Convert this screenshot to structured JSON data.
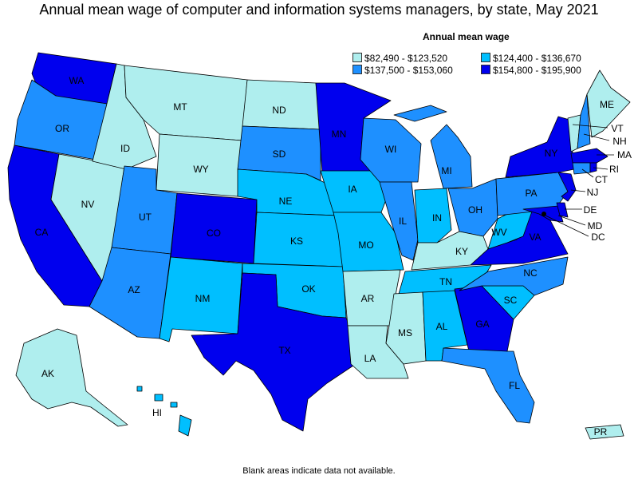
{
  "title": "Annual mean wage of computer and information systems managers, by state, May 2021",
  "legend": {
    "title": "Annual mean wage",
    "bins": [
      {
        "label": "$82,490 - $123,520",
        "color": "#afeeee"
      },
      {
        "label": "$124,400 - $136,670",
        "color": "#00bfff"
      },
      {
        "label": "$137,500 - $153,060",
        "color": "#1e90ff"
      },
      {
        "label": "$154,800 - $195,900",
        "color": "#0000ee"
      }
    ]
  },
  "footer": "Blank areas indicate data not available.",
  "states": {
    "WA": "WA",
    "OR": "OR",
    "CA": "CA",
    "NV": "NV",
    "ID": "ID",
    "MT": "MT",
    "WY": "WY",
    "UT": "UT",
    "AZ": "AZ",
    "CO": "CO",
    "NM": "NM",
    "ND": "ND",
    "SD": "SD",
    "NE": "NE",
    "KS": "KS",
    "OK": "OK",
    "TX": "TX",
    "MN": "MN",
    "IA": "IA",
    "MO": "MO",
    "AR": "AR",
    "LA": "LA",
    "WI": "WI",
    "IL": "IL",
    "MI": "MI",
    "IN": "IN",
    "OH": "OH",
    "KY": "KY",
    "TN": "TN",
    "MS": "MS",
    "AL": "AL",
    "GA": "GA",
    "FL": "FL",
    "SC": "SC",
    "NC": "NC",
    "VA": "VA",
    "WV": "WV",
    "PA": "PA",
    "NY": "NY",
    "ME": "ME",
    "VT": "VT",
    "NH": "NH",
    "MA": "MA",
    "RI": "RI",
    "CT": "CT",
    "NJ": "NJ",
    "DE": "DE",
    "MD": "MD",
    "DC": "DC",
    "AK": "AK",
    "HI": "HI",
    "PR": "PR"
  }
}
